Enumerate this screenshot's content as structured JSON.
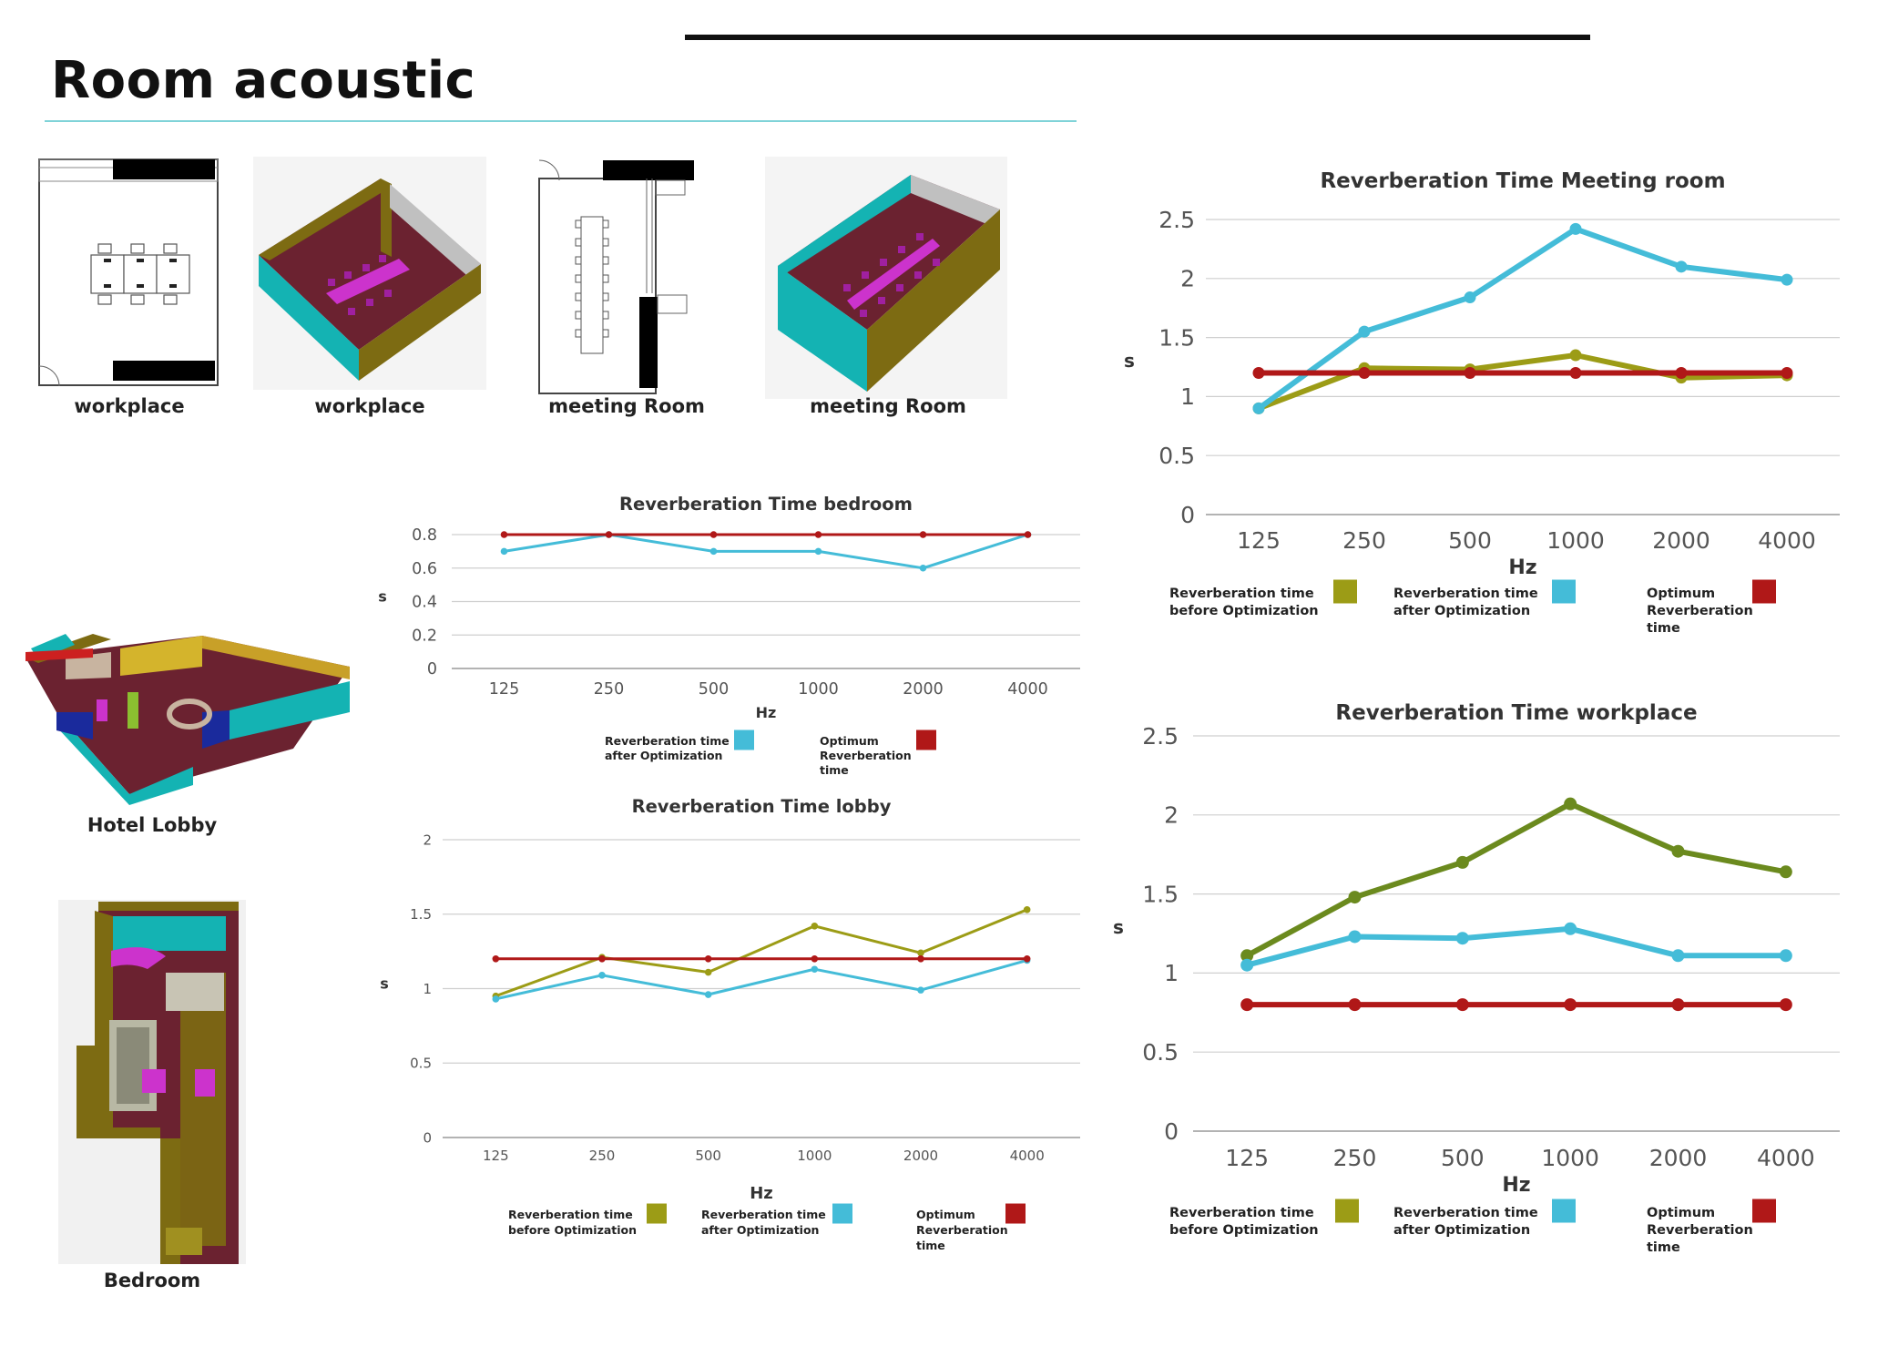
{
  "page": {
    "title": "Room acoustic"
  },
  "thumbnails": [
    {
      "caption": "workplace"
    },
    {
      "caption": "workplace"
    },
    {
      "caption": "meeting Room"
    },
    {
      "caption": "meeting Room"
    },
    {
      "caption": "Hotel Lobby"
    },
    {
      "caption": "Bedroom"
    }
  ],
  "colors": {
    "before": "#9c9c16",
    "after": "#44bcd8",
    "optimum": "#b01818",
    "before_workplace": "#6b8a1e",
    "grid": "#cfcfcf",
    "accent_rule": "#7fd3d8",
    "teal": "#14b3b3",
    "olive": "#7d6b12",
    "maroon": "#6b2230",
    "magenta": "#cc33cc"
  },
  "chart_data": [
    {
      "id": "meeting",
      "type": "line",
      "title": "Reverberation Time Meeting room",
      "xlabel": "Hz",
      "ylabel": "s",
      "categories": [
        "125",
        "250",
        "500",
        "1000",
        "2000",
        "4000"
      ],
      "ylim": [
        0,
        2.5
      ],
      "yticks": [
        0,
        0.5,
        1,
        1.5,
        2,
        2.5
      ],
      "ytick_labels": [
        "0",
        "0.5",
        "1",
        "1.5",
        "2",
        "2.5"
      ],
      "grid": true,
      "series": [
        {
          "name": "Reverberation time before Optimization",
          "name_lines": [
            "Reverberation time",
            "before Optimization"
          ],
          "color": "#9c9c16",
          "values": [
            0.9,
            1.24,
            1.23,
            1.35,
            1.16,
            1.18
          ]
        },
        {
          "name": "Reverberation time after Optimization",
          "name_lines": [
            "Reverberation time",
            "after Optimization"
          ],
          "color": "#44bcd8",
          "values": [
            0.9,
            1.55,
            1.84,
            2.42,
            2.1,
            1.99
          ]
        },
        {
          "name": "Optimum Reverberation time",
          "name_lines": [
            "Optimum",
            "Reverberation",
            "time"
          ],
          "color": "#b01818",
          "values": [
            1.2,
            1.2,
            1.2,
            1.2,
            1.2,
            1.2
          ]
        }
      ]
    },
    {
      "id": "bedroom",
      "type": "line",
      "title": "Reverberation Time bedroom",
      "xlabel": "Hz",
      "ylabel": "s",
      "categories": [
        "125",
        "250",
        "500",
        "1000",
        "2000",
        "4000"
      ],
      "ylim": [
        0,
        0.8
      ],
      "yticks": [
        0,
        0.2,
        0.4,
        0.6,
        0.8
      ],
      "ytick_labels": [
        "0",
        "0.2",
        "0.4",
        "0.6",
        "0.8"
      ],
      "grid": true,
      "series": [
        {
          "name": "Reverberation time after Optimization",
          "name_lines": [
            "Reverberation time",
            "after Optimization"
          ],
          "color": "#44bcd8",
          "values": [
            0.7,
            0.8,
            0.7,
            0.7,
            0.6,
            0.8
          ]
        },
        {
          "name": "Optimum Reverberation time",
          "name_lines": [
            "Optimum",
            "Reverberation",
            "time"
          ],
          "color": "#b01818",
          "values": [
            0.8,
            0.8,
            0.8,
            0.8,
            0.8,
            0.8
          ]
        }
      ]
    },
    {
      "id": "lobby",
      "type": "line",
      "title": "Reverberation Time lobby",
      "xlabel": "Hz",
      "ylabel": "s",
      "categories": [
        "125",
        "250",
        "500",
        "1000",
        "2000",
        "4000"
      ],
      "ylim": [
        0,
        2
      ],
      "yticks": [
        0,
        0.5,
        1,
        1.5,
        2
      ],
      "ytick_labels": [
        "0",
        "0.5",
        "1",
        "1.5",
        "2"
      ],
      "grid": true,
      "series": [
        {
          "name": "Reverberation time before Optimization",
          "name_lines": [
            "Reverberation time",
            "before Optimization"
          ],
          "color": "#9c9c16",
          "values": [
            0.95,
            1.21,
            1.11,
            1.42,
            1.24,
            1.53
          ]
        },
        {
          "name": "Reverberation time after Optimization",
          "name_lines": [
            "Reverberation time",
            "after Optimization"
          ],
          "color": "#44bcd8",
          "values": [
            0.93,
            1.09,
            0.96,
            1.13,
            0.99,
            1.19
          ]
        },
        {
          "name": "Optimum Reverberation time",
          "name_lines": [
            "Optimum",
            "Reverberation",
            "time"
          ],
          "color": "#b01818",
          "values": [
            1.2,
            1.2,
            1.2,
            1.2,
            1.2,
            1.2
          ]
        }
      ]
    },
    {
      "id": "workplace",
      "type": "line",
      "title": "Reverberation Time workplace",
      "xlabel": "Hz",
      "ylabel": "s",
      "categories": [
        "125",
        "250",
        "500",
        "1000",
        "2000",
        "4000"
      ],
      "ylim": [
        0,
        2.5
      ],
      "yticks": [
        0,
        0.5,
        1,
        1.5,
        2,
        2.5
      ],
      "ytick_labels": [
        "0",
        "0.5",
        "1",
        "1.5",
        "2",
        "2.5"
      ],
      "grid": true,
      "series": [
        {
          "name": "Reverberation time before Optimization",
          "name_lines": [
            "Reverberation time",
            "before Optimization"
          ],
          "color": "#6b8a1e",
          "legend_color": "#9c9c16",
          "values": [
            1.11,
            1.48,
            1.7,
            2.07,
            1.77,
            1.64
          ]
        },
        {
          "name": "Reverberation time after Optimization",
          "name_lines": [
            "Reverberation time",
            "after Optimization"
          ],
          "color": "#44bcd8",
          "values": [
            1.05,
            1.23,
            1.22,
            1.28,
            1.11,
            1.11
          ]
        },
        {
          "name": "Optimum Reverberation time",
          "name_lines": [
            "Optimum",
            "Reverberation",
            "time"
          ],
          "color": "#b01818",
          "values": [
            0.8,
            0.8,
            0.8,
            0.8,
            0.8,
            0.8
          ]
        }
      ]
    }
  ]
}
